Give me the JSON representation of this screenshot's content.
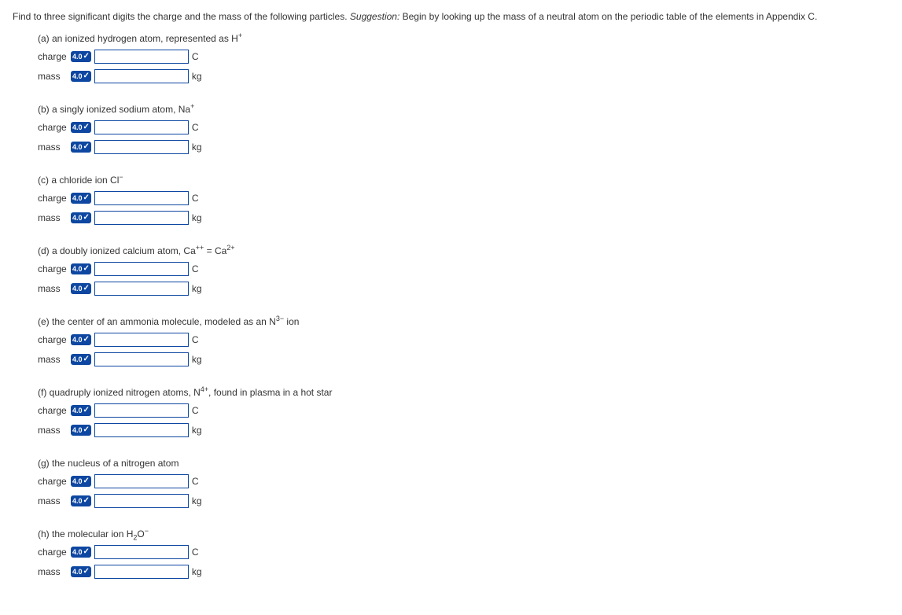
{
  "question": {
    "text_pre": "Find to three significant digits the charge and the mass of the following particles. ",
    "suggestion_label": "Suggestion:",
    "text_post": " Begin by looking up the mass of a neutral atom on the periodic table of the elements in Appendix C."
  },
  "badge": {
    "points": "4.0",
    "check": "✓"
  },
  "labels": {
    "charge": "charge",
    "mass": "mass"
  },
  "units": {
    "charge": "C",
    "mass": "kg"
  },
  "parts": {
    "a": {
      "prompt_pre": "(a) an ionized hydrogen atom, represented as H",
      "sup": "+",
      "prompt_post": ""
    },
    "b": {
      "prompt_pre": "(b) a singly ionized sodium atom, Na",
      "sup": "+",
      "prompt_post": ""
    },
    "c": {
      "prompt_pre": "(c) a chloride ion Cl",
      "sup": "−",
      "prompt_post": ""
    },
    "d": {
      "prompt_pre": "(d) a doubly ionized calcium atom, Ca",
      "sup": "++",
      "mid": " = Ca",
      "sup2": "2+",
      "prompt_post": ""
    },
    "e": {
      "prompt_pre": "(e) the center of an ammonia molecule, modeled as an N",
      "sup": "3−",
      "prompt_post": " ion"
    },
    "f": {
      "prompt_pre": "(f) quadruply ionized nitrogen atoms, N",
      "sup": "4+",
      "prompt_post": ", found in plasma in a hot star"
    },
    "g": {
      "prompt_pre": "(g) the nucleus of a nitrogen atom",
      "sup": "",
      "prompt_post": ""
    },
    "h": {
      "prompt_pre": "(h) the molecular ion H",
      "sub": "2",
      "mid": "O",
      "sup": "−",
      "prompt_post": ""
    }
  }
}
